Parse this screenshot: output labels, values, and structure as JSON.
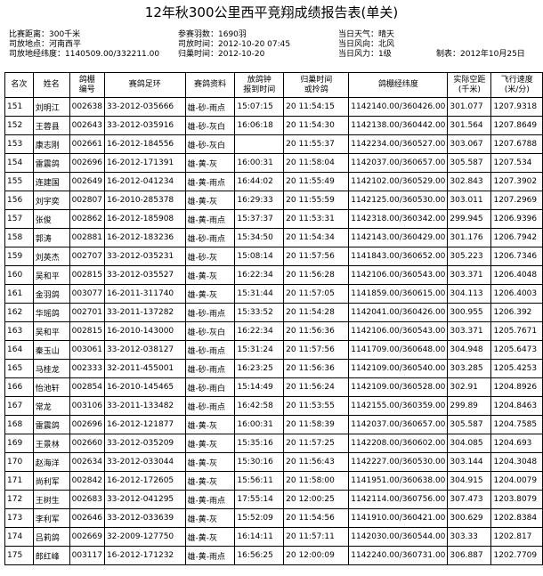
{
  "header": {
    "title": "12年秋300公里西平竞翔成绩报告表(单关)"
  },
  "info": [
    [
      "比赛距离：300千米",
      "参赛羽数：1690羽",
      "当日天气：晴天"
    ],
    [
      "司放地点：河南西平",
      "司放时间：2012-10-20 07:45",
      "当日风向：北风"
    ],
    [
      "司放地经纬度：1140509.00/332211.00",
      "归巢时间：2012-10-20",
      "当日风力：1级",
      "制表：2012年10月25日"
    ]
  ],
  "table": {
    "columns": [
      [
        "名次"
      ],
      [
        "姓名"
      ],
      [
        "鸽棚",
        "编号"
      ],
      [
        "赛鸽足环"
      ],
      [
        "赛鸽资料"
      ],
      [
        "放鸽钟",
        "报到时间"
      ],
      [
        "归巢时间",
        "或拎鸽"
      ],
      [
        "鸽棚经纬度"
      ],
      [
        "实际空距",
        "(千米)"
      ],
      [
        "飞行速度",
        "(米/分)"
      ]
    ],
    "rows": [
      [
        "151",
        "刘明江",
        "002638",
        "33-2012-035666",
        "雄-砂-雨点",
        "15:07:15",
        "20 11:54:15",
        "1142140.00/360426.00",
        "301.077",
        "1207.9318"
      ],
      [
        "152",
        "王蓉县",
        "002643",
        "33-2012-035916",
        "雄-砂-灰白",
        "16:06:18",
        "20 11:54:30",
        "1142138.00/360442.00",
        "301.564",
        "1207.8649"
      ],
      [
        "153",
        "康志刚",
        "002661",
        "16-2012-184556",
        "雄-砂-灰白",
        null,
        "20 11:55:37",
        "1142234.00/360527.00",
        "303.067",
        "1207.6788"
      ],
      [
        "154",
        "雷震鸽",
        "002696",
        "16-2012-171391",
        "雄-黄-灰",
        "16:00:31",
        "20 11:58:04",
        "1142037.00/360657.00",
        "305.587",
        "1207.534"
      ],
      [
        "155",
        "连建国",
        "002649",
        "16-2012-041234",
        "雄-黄-雨点",
        "16:44:02",
        "20 11:55:49",
        "1142102.00/360529.00",
        "302.843",
        "1207.3902"
      ],
      [
        "156",
        "刘宇奕",
        "002807",
        "16-2010-285378",
        "雄-黄-灰",
        "16:29:33",
        "20 11:55:59",
        "1142125.00/360530.00",
        "303.011",
        "1207.2969"
      ],
      [
        "157",
        "张俊",
        "002862",
        "16-2012-185908",
        "雄-黄-雨点",
        "15:37:37",
        "20 11:53:31",
        "1142318.00/360342.00",
        "299.945",
        "1206.9396"
      ],
      [
        "158",
        "郭涛",
        "002881",
        "16-2012-183236",
        "雄-砂-雨点",
        "15:34:50",
        "20 11:54:34",
        "1142143.00/360429.00",
        "301.176",
        "1206.7942"
      ],
      [
        "159",
        "刘英杰",
        "002707",
        "33-2012-035231",
        "雄-砂-灰",
        "15:08:14",
        "20 11:57:56",
        "1141843.00/360652.00",
        "305.223",
        "1206.7346"
      ],
      [
        "160",
        "吴和平",
        "002815",
        "33-2012-035527",
        "雄-黄-灰",
        "16:22:34",
        "20 11:56:28",
        "1142106.00/360543.00",
        "303.371",
        "1206.4048"
      ],
      [
        "161",
        "金羽鸽",
        "003077",
        "16-2011-311740",
        "雄-黄-灰",
        "15:31:44",
        "20 11:57:05",
        "1141859.00/360615.00",
        "304.113",
        "1206.4003"
      ],
      [
        "162",
        "华瑶鸽",
        "002701",
        "33-2011-137282",
        "雄-砂-雨点",
        "15:33:52",
        "20 11:54:28",
        "1142041.00/360426.00",
        "300.955",
        "1206.392"
      ],
      [
        "163",
        "吴和平",
        "002815",
        "16-2010-143000",
        "雄-砂-灰白",
        "16:22:34",
        "20 11:56:36",
        "1142106.00/360543.00",
        "303.371",
        "1205.7671"
      ],
      [
        "164",
        "秦玉山",
        "003061",
        "33-2012-038127",
        "雄-砂-雨点",
        "15:31:24",
        "20 11:57:56",
        "1141709.00/360648.00",
        "304.948",
        "1205.6473"
      ],
      [
        "165",
        "马桂龙",
        "002333",
        "32-2011-455001",
        "雄-砂-雨点",
        "16:23:25",
        "20 11:56:36",
        "1142109.00/360540.00",
        "303.285",
        "1205.4253"
      ],
      [
        "166",
        "怡池轩",
        "002854",
        "16-2010-145465",
        "雄-砂-雨白",
        "15:14:49",
        "20 11:56:24",
        "1142109.00/360528.00",
        "302.91",
        "1204.8926"
      ],
      [
        "167",
        "常龙",
        "003106",
        "33-2011-133482",
        "雄-砂-雨点",
        "16:42:58",
        "20 11:53:55",
        "1142155.00/360359.00",
        "299.89",
        "1204.8463"
      ],
      [
        "168",
        "雷震鸽",
        "002696",
        "16-2012-121877",
        "雄-黄-灰",
        "16:00:31",
        "20 11:58:39",
        "1142037.00/360657.00",
        "305.587",
        "1204.7585"
      ],
      [
        "169",
        "王景林",
        "002660",
        "33-2012-035209",
        "雄-黄-灰",
        "15:35:16",
        "20 11:57:25",
        "1142208.00/360602.00",
        "304.085",
        "1204.693"
      ],
      [
        "170",
        "赵海洋",
        "002634",
        "33-2012-033044",
        "雄-黄-灰",
        "15:30:16",
        "20 11:56:43",
        "1142227.00/360530.00",
        "303.144",
        "1204.3048"
      ],
      [
        "171",
        "尚利军",
        "002842",
        "16-2012-172605",
        "雄-黄-灰",
        "15:56:11",
        "20 11:58:00",
        "1141951.00/360638.00",
        "304.915",
        "1204.0079"
      ],
      [
        "172",
        "王树生",
        "002683",
        "33-2012-041295",
        "雄-黄-雨点",
        "17:55:14",
        "20 12:00:25",
        "1142114.00/360756.00",
        "307.473",
        "1203.8079"
      ],
      [
        "173",
        "李利军",
        "002646",
        "33-2012-033639",
        "雄-黄-灰",
        "15:52:09",
        "20 11:54:56",
        "1141910.00/360421.00",
        "300.629",
        "1202.8384"
      ],
      [
        "174",
        "吕莉鸽",
        "002669",
        "32-2009-127750",
        "雄-黄-灰",
        "16:14:11",
        "20 11:57:11",
        "1142030.00/360544.00",
        "303.33",
        "1202.817"
      ],
      [
        "175",
        "郎红峰",
        "003117",
        "16-2012-171232",
        "雄-黄-雨点",
        "16:56:25",
        "20 12:00:09",
        "1142240.00/360731.00",
        "306.887",
        "1202.7709"
      ]
    ]
  }
}
